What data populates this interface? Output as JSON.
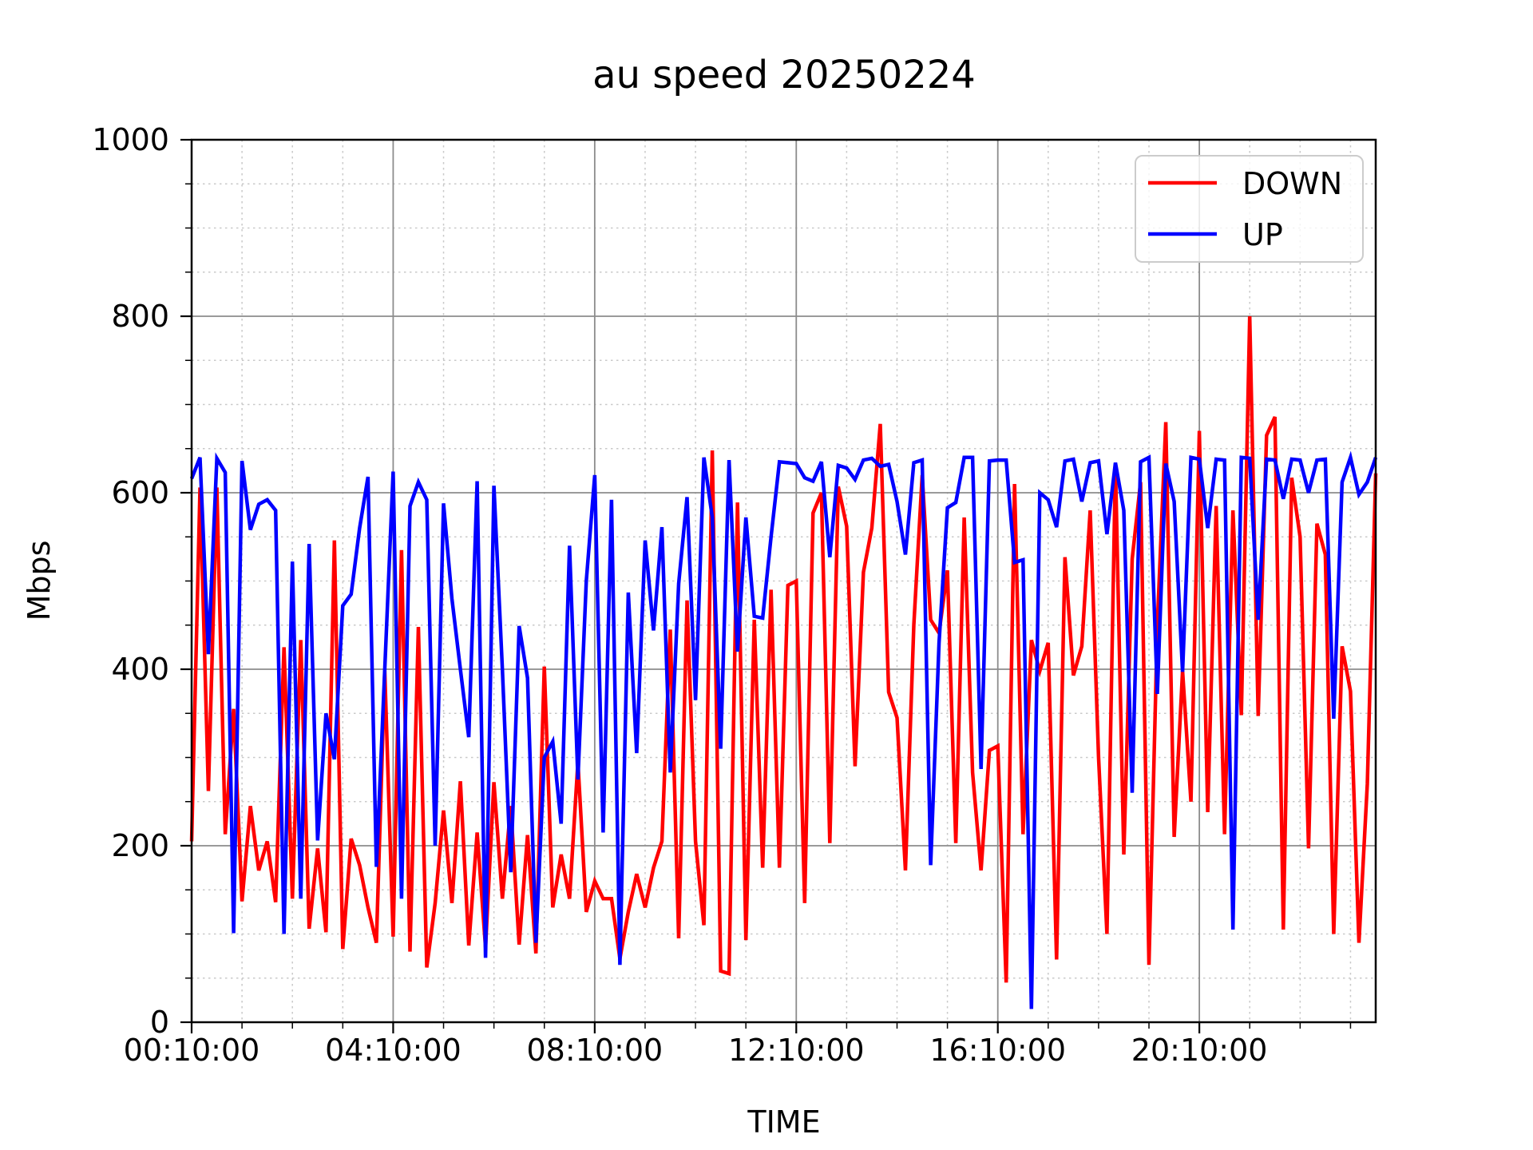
{
  "title": "au speed 20250224",
  "chart_data": {
    "type": "line",
    "title": "au speed 20250224",
    "xlabel": "TIME",
    "ylabel": "Mbps",
    "ylim": [
      0,
      1000
    ],
    "y_major_ticks": [
      0,
      200,
      400,
      600,
      800,
      1000
    ],
    "y_minor_step": 50,
    "x_start": "00:10:00",
    "x_step_minutes": 10,
    "x_range_minutes": [
      10,
      1420
    ],
    "x_major_tick_minutes": [
      10,
      250,
      490,
      730,
      970,
      1210
    ],
    "x_major_tick_labels": [
      "00:10:00",
      "04:10:00",
      "08:10:00",
      "12:10:00",
      "16:10:00",
      "20:10:00"
    ],
    "x_minor_step_minutes": 60,
    "grid": {
      "major_color": "#8c8c8c",
      "minor_color": "#c9c9c9",
      "minor_dotted": true
    },
    "legend": {
      "position": "upper right",
      "entries": [
        {
          "label": "DOWN",
          "color": "#ff0000"
        },
        {
          "label": "UP",
          "color": "#0000ff"
        }
      ]
    },
    "series": [
      {
        "name": "DOWN",
        "color": "#ff0000",
        "values": [
          205,
          606,
          262,
          606,
          213,
          355,
          137,
          245,
          172,
          205,
          136,
          425,
          140,
          433,
          106,
          197,
          102,
          546,
          83,
          208,
          178,
          130,
          90,
          398,
          97,
          535,
          80,
          448,
          62,
          135,
          240,
          135,
          273,
          87,
          215,
          85,
          272,
          140,
          245,
          88,
          212,
          78,
          403,
          130,
          190,
          140,
          295,
          125,
          160,
          140,
          140,
          72,
          125,
          168,
          130,
          175,
          205,
          445,
          95,
          478,
          205,
          110,
          648,
          58,
          55,
          589,
          93,
          456,
          175,
          490,
          175,
          495,
          500,
          135,
          577,
          600,
          203,
          607,
          562,
          290,
          510,
          560,
          678,
          374,
          345,
          172,
          450,
          620,
          456,
          441,
          512,
          203,
          572,
          283,
          172,
          308,
          313,
          45,
          610,
          213,
          433,
          398,
          430,
          71,
          527,
          393,
          426,
          580,
          300,
          100,
          632,
          190,
          525,
          612,
          65,
          450,
          680,
          210,
          398,
          250,
          670,
          238,
          585,
          213,
          580,
          348,
          800,
          347,
          665,
          686,
          105,
          617,
          550,
          197,
          565,
          530,
          100,
          426,
          375,
          90,
          270,
          622
        ]
      },
      {
        "name": "UP",
        "color": "#0000ff",
        "values": [
          616,
          640,
          417,
          639,
          623,
          101,
          636,
          558,
          587,
          592,
          580,
          100,
          522,
          140,
          542,
          206,
          350,
          298,
          472,
          485,
          560,
          618,
          176,
          400,
          624,
          140,
          585,
          612,
          592,
          200,
          588,
          480,
          400,
          323,
          613,
          73,
          608,
          400,
          170,
          449,
          390,
          90,
          300,
          318,
          225,
          540,
          275,
          500,
          620,
          215,
          592,
          65,
          487,
          305,
          546,
          444,
          561,
          283,
          497,
          595,
          365,
          640,
          572,
          310,
          637,
          420,
          572,
          460,
          458,
          550,
          635,
          634,
          633,
          617,
          613,
          635,
          527,
          631,
          628,
          615,
          637,
          639,
          630,
          632,
          590,
          530,
          634,
          637,
          178,
          430,
          583,
          589,
          640,
          640,
          287,
          636,
          637,
          637,
          521,
          524,
          15,
          600,
          592,
          561,
          636,
          638,
          590,
          634,
          636,
          553,
          634,
          580,
          260,
          635,
          640,
          372,
          633,
          590,
          397,
          640,
          638,
          560,
          638,
          637,
          105,
          640,
          639,
          456,
          638,
          637,
          593,
          638,
          637,
          600,
          637,
          638,
          344,
          612,
          640,
          598,
          612,
          640
        ]
      }
    ]
  }
}
